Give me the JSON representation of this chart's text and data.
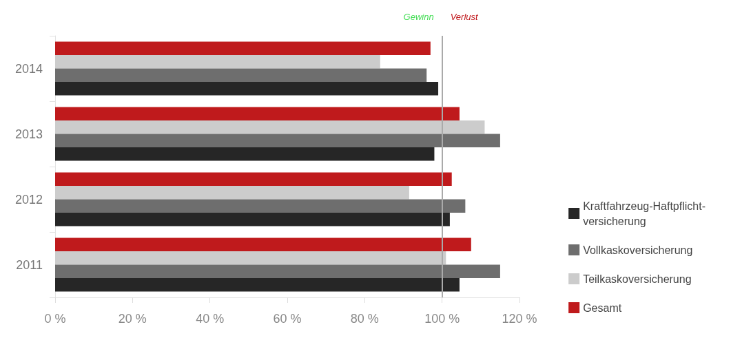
{
  "chart_data": {
    "type": "bar",
    "orientation": "horizontal",
    "categories": [
      "2014",
      "2013",
      "2012",
      "2011"
    ],
    "series": [
      {
        "name": "Kraftfahrzeug-Haftpflicht-\nversicherung",
        "color": "#262626",
        "values": [
          99,
          98,
          102,
          104.5
        ]
      },
      {
        "name": "Vollkaskoversicherung",
        "color": "#6e6e6e",
        "values": [
          96,
          115,
          106,
          115
        ]
      },
      {
        "name": "Teilkaskoversicherung",
        "color": "#cccccc",
        "values": [
          84,
          111,
          91.5,
          101
        ]
      },
      {
        "name": "Gesamt",
        "color": "#bf1a1c",
        "values": [
          97,
          104.5,
          102.5,
          107.5
        ]
      }
    ],
    "xlim": [
      0,
      120
    ],
    "xticks": [
      {
        "value": 0,
        "label": "0 %"
      },
      {
        "value": 20,
        "label": "20 %"
      },
      {
        "value": 40,
        "label": "40 %"
      },
      {
        "value": 60,
        "label": "60 %"
      },
      {
        "value": 80,
        "label": "80 %"
      },
      {
        "value": 100,
        "label": "100 %"
      },
      {
        "value": 120,
        "label": "120 %"
      }
    ],
    "ref_lines": [
      {
        "axis": "x",
        "value": 100,
        "color": "#aaaaaa"
      }
    ],
    "annotations": [
      "Gewinn",
      "Verlust"
    ],
    "grid": false,
    "legend": "right"
  }
}
